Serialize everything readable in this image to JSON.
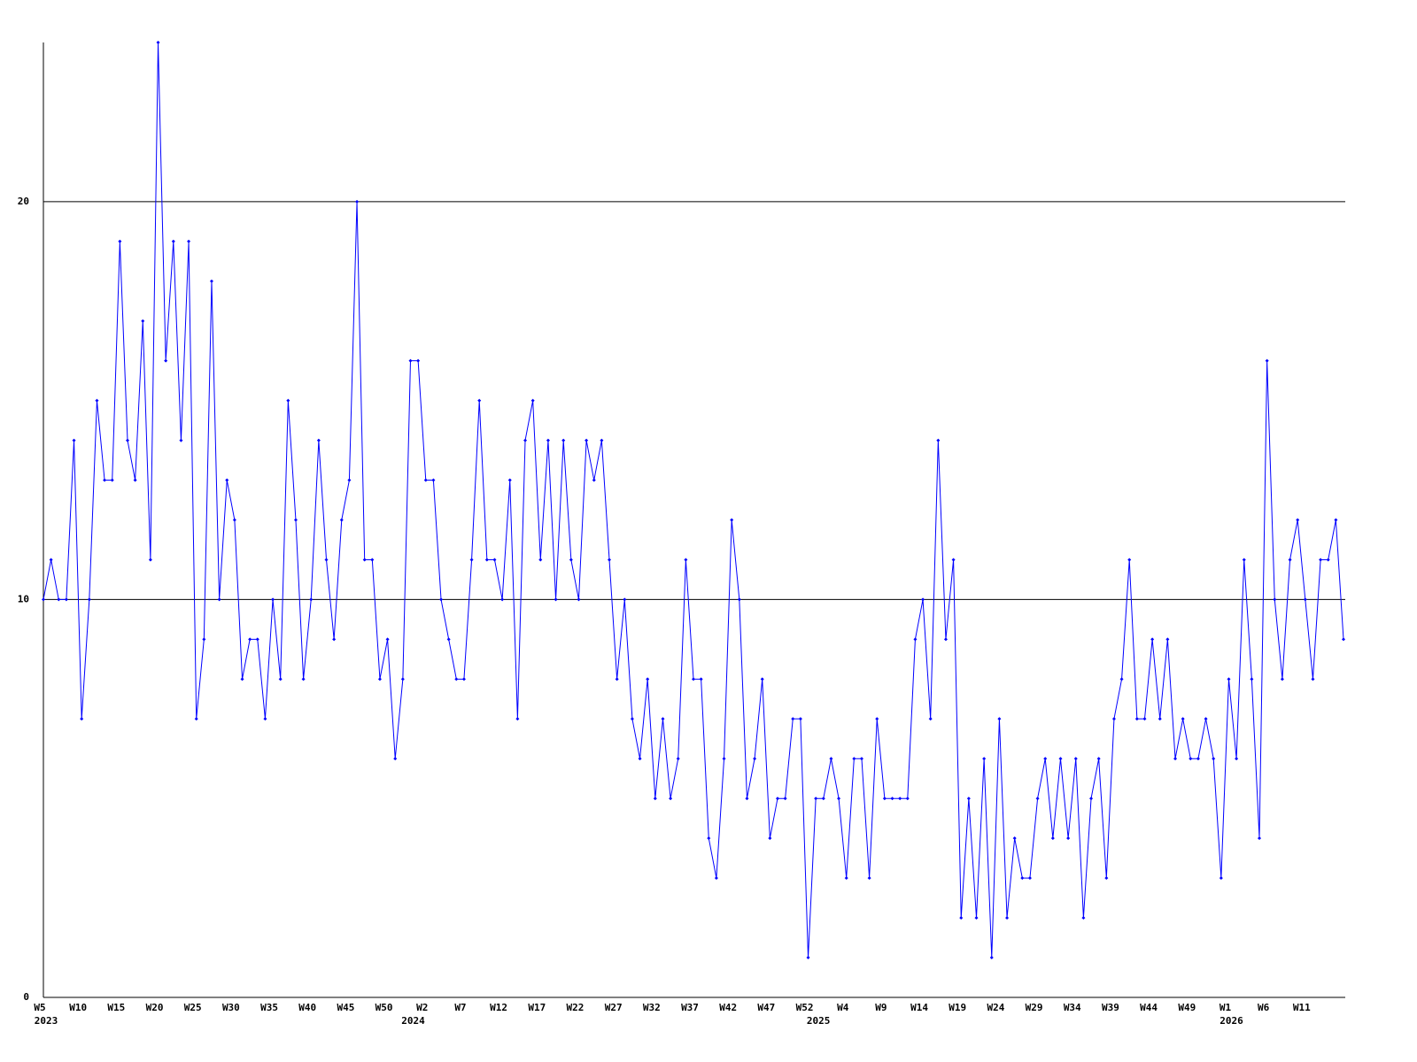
{
  "chart_data": {
    "type": "line",
    "categories": [
      "W5",
      null,
      null,
      null,
      null,
      "W10",
      null,
      null,
      null,
      null,
      "W15",
      null,
      null,
      null,
      null,
      "W20",
      null,
      null,
      null,
      null,
      "W25",
      null,
      null,
      null,
      null,
      "W30",
      null,
      null,
      null,
      null,
      "W35",
      null,
      null,
      null,
      null,
      "W40",
      null,
      null,
      null,
      null,
      "W45",
      null,
      null,
      null,
      null,
      "W50",
      null,
      null,
      null,
      null,
      "W2",
      null,
      null,
      null,
      null,
      "W7",
      null,
      null,
      null,
      null,
      "W12",
      null,
      null,
      null,
      null,
      "W17",
      null,
      null,
      null,
      null,
      "W22",
      null,
      null,
      null,
      null,
      "W27",
      null,
      null,
      null,
      null,
      "W32",
      null,
      null,
      null,
      null,
      "W37",
      null,
      null,
      null,
      null,
      "W42",
      null,
      null,
      null,
      null,
      "W47",
      null,
      null,
      null,
      null,
      "W52",
      null,
      null,
      null,
      null,
      "W4",
      null,
      null,
      null,
      null,
      "W9",
      null,
      null,
      null,
      null,
      "W14",
      null,
      null,
      null,
      null,
      "W19",
      null,
      null,
      null,
      null,
      "W24",
      null,
      null,
      null,
      null,
      "W29",
      null,
      null,
      null,
      null,
      "W34",
      null,
      null,
      null,
      null,
      "W39",
      null,
      null,
      null,
      null,
      "W44",
      null,
      null,
      null,
      null,
      "W49",
      null,
      null,
      null,
      null,
      "W1",
      null,
      null,
      null,
      null,
      "W6",
      null,
      null,
      null,
      null,
      "W11",
      null,
      null,
      null,
      null,
      null
    ],
    "category_years": [
      "2023",
      null,
      null,
      null,
      null,
      null,
      null,
      null,
      null,
      null,
      null,
      null,
      null,
      null,
      null,
      null,
      null,
      null,
      null,
      null,
      null,
      null,
      null,
      null,
      null,
      null,
      null,
      null,
      null,
      null,
      null,
      null,
      null,
      null,
      null,
      null,
      null,
      null,
      null,
      null,
      null,
      null,
      null,
      null,
      null,
      null,
      null,
      null,
      "2024",
      null,
      null,
      null,
      null,
      null,
      null,
      null,
      null,
      null,
      null,
      null,
      null,
      null,
      null,
      null,
      null,
      null,
      null,
      null,
      null,
      null,
      null,
      null,
      null,
      null,
      null,
      null,
      null,
      null,
      null,
      null,
      null,
      null,
      null,
      null,
      null,
      null,
      null,
      null,
      null,
      null,
      null,
      null,
      null,
      null,
      null,
      null,
      null,
      null,
      null,
      null,
      null,
      "2025",
      null,
      null,
      null,
      null,
      null,
      null,
      null,
      null,
      null,
      null,
      null,
      null,
      null,
      null,
      null,
      null,
      null,
      null,
      null,
      null,
      null,
      null,
      null,
      null,
      null,
      null,
      null,
      null,
      null,
      null,
      null,
      null,
      null,
      null,
      null,
      null,
      null,
      null,
      null,
      null,
      null,
      null,
      null,
      null,
      null,
      null,
      null,
      null,
      null,
      null,
      null,
      null,
      null,
      "2026",
      null,
      null,
      null,
      null,
      null,
      null,
      null,
      null,
      null,
      null,
      null,
      null,
      null,
      null,
      null
    ],
    "series": [
      {
        "color": "#0000ff",
        "values": [
          10,
          11,
          10,
          10,
          14,
          7,
          10,
          15,
          13,
          13,
          19,
          14,
          13,
          17,
          11,
          24,
          16,
          19,
          14,
          19,
          7,
          9,
          18,
          10,
          13,
          12,
          8,
          9,
          9,
          7,
          10,
          8,
          15,
          12,
          8,
          10,
          14,
          11,
          9,
          12,
          13,
          20,
          11,
          11,
          8,
          9,
          6,
          8,
          16,
          16,
          13,
          13,
          10,
          9,
          8,
          8,
          11,
          15,
          11,
          11,
          10,
          13,
          7,
          14,
          15,
          11,
          14,
          10,
          14,
          11,
          10,
          14,
          13,
          14,
          11,
          8,
          10,
          7,
          6,
          8,
          5,
          7,
          5,
          6,
          11,
          8,
          8,
          4,
          3,
          6,
          12,
          10,
          5,
          6,
          8,
          4,
          5,
          5,
          7,
          7,
          1,
          5,
          5,
          6,
          5,
          3,
          6,
          6,
          3,
          7,
          5,
          5,
          5,
          5,
          9,
          10,
          7,
          14,
          9,
          11,
          2,
          5,
          2,
          6,
          1,
          7,
          2,
          4,
          3,
          3,
          5,
          6,
          4,
          6,
          4,
          6,
          2,
          5,
          6,
          3,
          7,
          8,
          11,
          7,
          7,
          9,
          7,
          9,
          6,
          7,
          6,
          6,
          7,
          6,
          3,
          8,
          6,
          11,
          8,
          4,
          16,
          10,
          8,
          11,
          12,
          10,
          8,
          11,
          11,
          12,
          9
        ]
      }
    ],
    "ylim": [
      0,
      24
    ],
    "yticks": [
      0,
      10,
      20
    ],
    "grid": true
  }
}
